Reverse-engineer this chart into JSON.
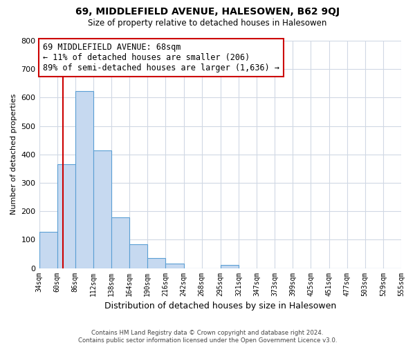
{
  "title": "69, MIDDLEFIELD AVENUE, HALESOWEN, B62 9QJ",
  "subtitle": "Size of property relative to detached houses in Halesowen",
  "xlabel": "Distribution of detached houses by size in Halesowen",
  "ylabel": "Number of detached properties",
  "bar_edges": [
    34,
    60,
    86,
    112,
    138,
    164,
    190,
    216,
    242,
    268,
    295,
    321,
    347,
    373,
    399,
    425,
    451,
    477,
    503,
    529,
    555
  ],
  "bar_heights": [
    128,
    365,
    622,
    415,
    178,
    85,
    35,
    15,
    0,
    0,
    10,
    0,
    0,
    0,
    0,
    0,
    0,
    0,
    0,
    0
  ],
  "bar_color": "#c6d9f0",
  "bar_edge_color": "#5a9fd4",
  "tick_labels": [
    "34sqm",
    "60sqm",
    "86sqm",
    "112sqm",
    "138sqm",
    "164sqm",
    "190sqm",
    "216sqm",
    "242sqm",
    "268sqm",
    "295sqm",
    "321sqm",
    "347sqm",
    "373sqm",
    "399sqm",
    "425sqm",
    "451sqm",
    "477sqm",
    "503sqm",
    "529sqm",
    "555sqm"
  ],
  "ylim": [
    0,
    800
  ],
  "yticks": [
    0,
    100,
    200,
    300,
    400,
    500,
    600,
    700,
    800
  ],
  "property_line_x": 68,
  "property_line_color": "#cc0000",
  "annotation_line1": "69 MIDDLEFIELD AVENUE: 68sqm",
  "annotation_line2": "← 11% of detached houses are smaller (206)",
  "annotation_line3": "89% of semi-detached houses are larger (1,636) →",
  "annotation_box_color": "#ffffff",
  "annotation_box_edge_color": "#cc0000",
  "footer_text": "Contains HM Land Registry data © Crown copyright and database right 2024.\nContains public sector information licensed under the Open Government Licence v3.0.",
  "background_color": "#ffffff",
  "grid_color": "#d0d8e4"
}
